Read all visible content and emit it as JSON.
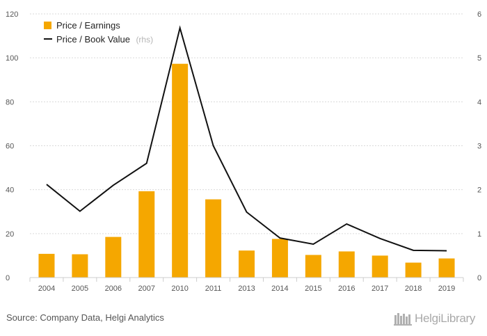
{
  "chart_data": {
    "type": "bar",
    "categories": [
      "2004",
      "2005",
      "2006",
      "2007",
      "2010",
      "2011",
      "2013",
      "2014",
      "2015",
      "2016",
      "2017",
      "2018",
      "2019"
    ],
    "series": [
      {
        "name": "Price / Earnings",
        "kind": "bar",
        "axis": "left",
        "color": "#f5a700",
        "values": [
          10.8,
          10.6,
          18.5,
          39.3,
          97.3,
          35.6,
          12.3,
          17.6,
          10.3,
          11.9,
          10.0,
          6.8,
          8.7
        ]
      },
      {
        "name": "Price / Book Value",
        "name_suffix": "(rhs)",
        "kind": "line",
        "axis": "right",
        "color": "#111111",
        "values": [
          2.12,
          1.51,
          2.1,
          2.6,
          5.68,
          3.0,
          1.49,
          0.9,
          0.76,
          1.22,
          0.89,
          0.62,
          0.61
        ]
      }
    ],
    "yleft": {
      "ticks": [
        0,
        20,
        40,
        60,
        80,
        100,
        120
      ],
      "ylim": [
        0,
        120
      ]
    },
    "yright": {
      "ticks": [
        0,
        1,
        2,
        3,
        4,
        5,
        6
      ],
      "ylim": [
        0,
        6
      ]
    },
    "grid": "horizontal dashed",
    "legend": "top-left"
  },
  "footer": {
    "source": "Source: Company Data, Helgi Analytics",
    "logo_text": "HelgiLibrary"
  }
}
